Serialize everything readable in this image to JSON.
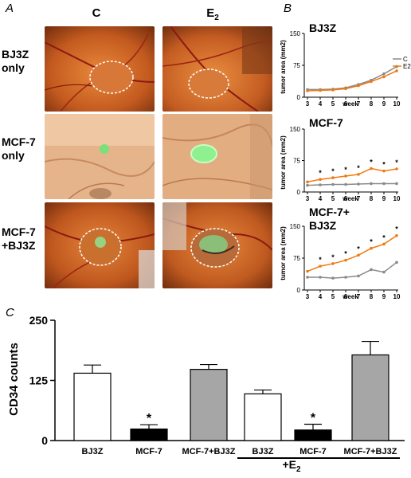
{
  "panel_letters": {
    "a": "A",
    "b": "B",
    "c": "C"
  },
  "panel_a": {
    "columns": [
      {
        "label": "C",
        "sub": ""
      },
      {
        "label": "E",
        "sub": "2"
      }
    ],
    "rows": [
      {
        "line1": "BJ3Z",
        "line2": "only"
      },
      {
        "line1": "MCF-7",
        "line2": "only"
      },
      {
        "line1": "MCF-7",
        "line2": "+BJ3Z"
      }
    ]
  },
  "colors": {
    "control": "#8a8a8a",
    "e2": "#f07a10"
  },
  "chart_data": [
    {
      "type": "line",
      "title": "BJ3Z",
      "xlabel": "week",
      "ylabel": "tumor area (mm2)",
      "x": [
        3,
        4,
        5,
        6,
        7,
        8,
        9,
        10
      ],
      "xlim": [
        3,
        10
      ],
      "ylim": [
        0,
        150
      ],
      "yticks": [
        0,
        75,
        150
      ],
      "legend_position": "right",
      "series": [
        {
          "name": "C",
          "values": [
            18,
            18,
            19,
            22,
            30,
            40,
            55,
            72
          ]
        },
        {
          "name": "E2",
          "values": [
            15,
            16,
            17,
            20,
            27,
            37,
            48,
            62
          ]
        }
      ]
    },
    {
      "type": "line",
      "title": "MCF-7",
      "xlabel": "week",
      "ylabel": "tumor area (mm2)",
      "x": [
        3,
        4,
        5,
        6,
        7,
        8,
        9,
        10
      ],
      "xlim": [
        3,
        10
      ],
      "ylim": [
        0,
        150
      ],
      "yticks": [
        0,
        75,
        150
      ],
      "significance": "*",
      "significant_x": [
        4,
        5,
        6,
        7,
        8,
        9,
        10
      ],
      "series": [
        {
          "name": "C",
          "values": [
            16,
            17,
            18,
            18,
            19,
            20,
            20,
            20
          ]
        },
        {
          "name": "E2",
          "values": [
            24,
            30,
            34,
            38,
            42,
            56,
            50,
            55
          ]
        }
      ]
    },
    {
      "type": "line",
      "title": "MCF-7+",
      "title_line2": "BJ3Z",
      "xlabel": "week",
      "ylabel": "tumor area (mm2)",
      "x": [
        3,
        4,
        5,
        6,
        7,
        8,
        9,
        10
      ],
      "xlim": [
        3,
        10
      ],
      "ylim": [
        0,
        150
      ],
      "yticks": [
        0,
        75,
        150
      ],
      "significance": "*",
      "significant_x": [
        4,
        5,
        6,
        7,
        8,
        9,
        10
      ],
      "series": [
        {
          "name": "C",
          "values": [
            30,
            30,
            28,
            30,
            33,
            48,
            42,
            65
          ]
        },
        {
          "name": "E2",
          "values": [
            44,
            56,
            62,
            70,
            82,
            98,
            108,
            128
          ]
        }
      ]
    },
    {
      "type": "bar",
      "ylabel": "CD34 counts",
      "categories": [
        "BJ3Z",
        "MCF-7",
        "MCF-7+BJ3Z",
        "BJ3Z",
        "MCF-7",
        "MCF-7+BJ3Z"
      ],
      "values": [
        140,
        24,
        148,
        97,
        22,
        178
      ],
      "errors": [
        17,
        9,
        10,
        8,
        12,
        28
      ],
      "bar_colors": [
        "#ffffff",
        "#000000",
        "#a6a6a6",
        "#ffffff",
        "#000000",
        "#a6a6a6"
      ],
      "significant": [
        false,
        true,
        false,
        false,
        true,
        false
      ],
      "significance": "*",
      "ylim": [
        0,
        250
      ],
      "yticks": [
        0,
        125,
        250
      ],
      "group_label": "+E",
      "group_label_sub": "2"
    }
  ]
}
